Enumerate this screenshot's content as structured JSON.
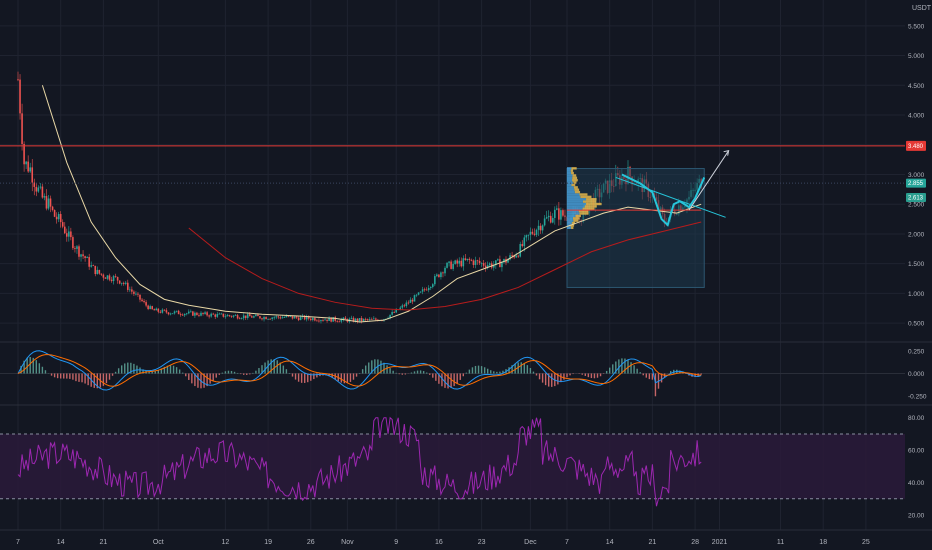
{
  "currency": "USDT",
  "colors": {
    "background": "#131722",
    "grid": "#1f2330",
    "up": "#26a69a",
    "down": "#ef5350",
    "ma_fast": "#e9d8a6",
    "ma_slow": "#b71c1c",
    "hline": "#e53935",
    "cyan_line": "#26c6da",
    "volume_profile_up": "#4aa3df",
    "volume_profile_down": "#e6b84c",
    "rsi": "#9c27b0",
    "rsi_band": "#2a1a3a",
    "macd": "#2196f3",
    "signal": "#ff6d00"
  },
  "x_axis": {
    "ticks": [
      {
        "label": "7",
        "day": 0
      },
      {
        "label": "14",
        "day": 7
      },
      {
        "label": "21",
        "day": 14
      },
      {
        "label": "Oct",
        "day": 23
      },
      {
        "label": "12",
        "day": 34
      },
      {
        "label": "19",
        "day": 41
      },
      {
        "label": "26",
        "day": 48
      },
      {
        "label": "Nov",
        "day": 54
      },
      {
        "label": "9",
        "day": 62
      },
      {
        "label": "16",
        "day": 69
      },
      {
        "label": "23",
        "day": 76
      },
      {
        "label": "Dec",
        "day": 84
      },
      {
        "label": "7",
        "day": 90
      },
      {
        "label": "14",
        "day": 97
      },
      {
        "label": "21",
        "day": 104
      },
      {
        "label": "28",
        "day": 111
      },
      {
        "label": "2021",
        "day": 115
      },
      {
        "label": "11",
        "day": 125
      },
      {
        "label": "18",
        "day": 132
      },
      {
        "label": "25",
        "day": 139
      }
    ]
  },
  "price_panel": {
    "y_ticks": [
      "5.500",
      "5.000",
      "4.500",
      "4.000",
      "3.500",
      "3.000",
      "2.500",
      "2.000",
      "1.500",
      "1.000",
      "0.500"
    ],
    "ylim": [
      0.25,
      5.85
    ],
    "hline_value": 3.48,
    "hline_label": "3.480",
    "last_price_label": "2.855",
    "secondary_label": "2.613",
    "chart_data": {
      "type": "line",
      "series": [
        {
          "points": [
            [
              0,
              4.6
            ],
            [
              1,
              3.2
            ],
            [
              2,
              3.1
            ],
            [
              3,
              2.8
            ],
            [
              4,
              2.6
            ],
            [
              5,
              2.5
            ],
            [
              6,
              2.3
            ],
            [
              7,
              2.2
            ],
            [
              8,
              2.0
            ],
            [
              9,
              1.85
            ],
            [
              10,
              1.7
            ],
            [
              11,
              1.6
            ],
            [
              12,
              1.45
            ],
            [
              13,
              1.35
            ],
            [
              14,
              1.3
            ],
            [
              15,
              1.28
            ],
            [
              16,
              1.25
            ],
            [
              17,
              1.2
            ],
            [
              18,
              1.1
            ],
            [
              19,
              1.0
            ],
            [
              20,
              0.9
            ],
            [
              21,
              0.8
            ],
            [
              22,
              0.72
            ],
            [
              23,
              0.7
            ],
            [
              25,
              0.68
            ],
            [
              27,
              0.67
            ],
            [
              30,
              0.65
            ],
            [
              33,
              0.63
            ],
            [
              36,
              0.62
            ],
            [
              40,
              0.6
            ],
            [
              44,
              0.6
            ],
            [
              48,
              0.58
            ],
            [
              52,
              0.56
            ],
            [
              55,
              0.55
            ],
            [
              58,
              0.55
            ],
            [
              60,
              0.58
            ],
            [
              62,
              0.7
            ],
            [
              64,
              0.85
            ],
            [
              66,
              1.0
            ],
            [
              68,
              1.2
            ],
            [
              70,
              1.45
            ],
            [
              72,
              1.5
            ],
            [
              74,
              1.55
            ],
            [
              76,
              1.5
            ],
            [
              78,
              1.48
            ],
            [
              80,
              1.55
            ],
            [
              82,
              1.7
            ],
            [
              84,
              2.0
            ],
            [
              86,
              2.2
            ],
            [
              88,
              2.35
            ],
            [
              90,
              2.3
            ],
            [
              92,
              2.25
            ],
            [
              94,
              2.55
            ],
            [
              96,
              2.75
            ],
            [
              98,
              2.9
            ],
            [
              100,
              3.0
            ],
            [
              102,
              2.85
            ],
            [
              104,
              2.65
            ],
            [
              106,
              2.2
            ],
            [
              108,
              2.45
            ],
            [
              110,
              2.6
            ],
            [
              112,
              2.9
            ]
          ]
        },
        {
          "points": [
            [
              4,
              4.5
            ],
            [
              8,
              3.2
            ],
            [
              12,
              2.2
            ],
            [
              16,
              1.6
            ],
            [
              20,
              1.15
            ],
            [
              24,
              0.9
            ],
            [
              28,
              0.8
            ],
            [
              34,
              0.7
            ],
            [
              40,
              0.65
            ],
            [
              46,
              0.62
            ],
            [
              52,
              0.58
            ],
            [
              56,
              0.52
            ],
            [
              60,
              0.55
            ],
            [
              64,
              0.7
            ],
            [
              68,
              0.95
            ],
            [
              72,
              1.25
            ],
            [
              76,
              1.4
            ],
            [
              80,
              1.55
            ],
            [
              84,
              1.8
            ],
            [
              88,
              2.05
            ],
            [
              92,
              2.2
            ],
            [
              96,
              2.35
            ],
            [
              100,
              2.45
            ],
            [
              104,
              2.4
            ],
            [
              108,
              2.35
            ],
            [
              112,
              2.5
            ]
          ]
        },
        {
          "points": [
            [
              28,
              2.1
            ],
            [
              34,
              1.6
            ],
            [
              40,
              1.25
            ],
            [
              46,
              1.0
            ],
            [
              52,
              0.85
            ],
            [
              58,
              0.75
            ],
            [
              64,
              0.72
            ],
            [
              70,
              0.78
            ],
            [
              76,
              0.9
            ],
            [
              82,
              1.1
            ],
            [
              88,
              1.4
            ],
            [
              94,
              1.7
            ],
            [
              100,
              1.9
            ],
            [
              106,
              2.05
            ],
            [
              112,
              2.2
            ]
          ]
        }
      ]
    }
  },
  "macd_panel": {
    "y_ticks": [
      "0.250",
      "0.000",
      "-0.250"
    ],
    "ylim": [
      -0.33,
      0.33
    ]
  },
  "rsi_panel": {
    "y_ticks": [
      "80.00",
      "60.00",
      "40.00",
      "20.00"
    ],
    "ylim": [
      12,
      86
    ],
    "band": [
      30,
      70
    ]
  }
}
